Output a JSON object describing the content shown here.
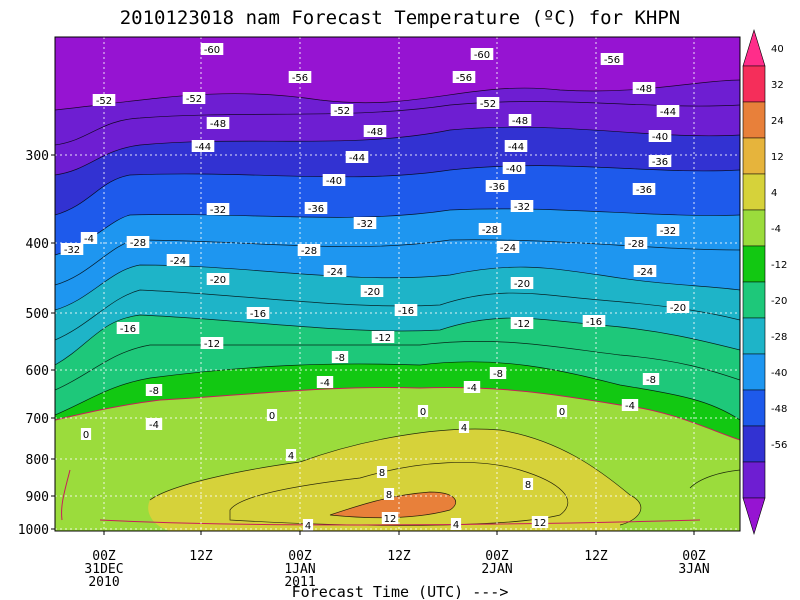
{
  "chart_data": {
    "type": "heatmap",
    "title": "2010123018 nam Forecast Temperature (ºC) for KHPN",
    "xlabel": "Forecast Time (UTC) --->",
    "ylabel": "",
    "x_ticks": [
      {
        "lines": [
          "00Z",
          "31DEC",
          "2010"
        ]
      },
      {
        "lines": [
          "12Z"
        ]
      },
      {
        "lines": [
          "00Z",
          "1JAN",
          "2011"
        ]
      },
      {
        "lines": [
          "12Z"
        ]
      },
      {
        "lines": [
          "00Z",
          "2JAN"
        ]
      },
      {
        "lines": [
          "12Z"
        ]
      },
      {
        "lines": [
          "00Z",
          "3JAN"
        ]
      }
    ],
    "y_ticks": [
      "300",
      "400",
      "500",
      "600",
      "700",
      "800",
      "900",
      "1000"
    ],
    "y_scale": "log",
    "colorbar": {
      "ticks": [
        "40",
        "32",
        "24",
        "12",
        "4",
        "-4",
        "-12",
        "-20",
        "-28",
        "-40",
        "-48",
        "-56"
      ],
      "colors": [
        "#ff2d8a",
        "#f52e5a",
        "#e8803a",
        "#e6b43c",
        "#d6d23a",
        "#9bdc3c",
        "#12c812",
        "#1ec87a",
        "#1eb4c8",
        "#1e96f0",
        "#1e5aeb",
        "#3232d2",
        "#6e1ed2",
        "#9614d2"
      ]
    },
    "grid": true,
    "contour_labels": [
      "-60",
      "-56",
      "-60",
      "-56",
      "-56",
      "-52",
      "-52",
      "-52",
      "-52",
      "-48",
      "-48",
      "-48",
      "-48",
      "-44",
      "-44",
      "-44",
      "-44",
      "-40",
      "-40",
      "-40",
      "-36",
      "-36",
      "-36",
      "-36",
      "-32",
      "-32",
      "-32",
      "-32",
      "-32",
      "-28",
      "-28",
      "-28",
      "-28",
      "-24",
      "-24",
      "-24",
      "-24",
      "-20",
      "-20",
      "-20",
      "-20",
      "-16",
      "-16",
      "-16",
      "-16",
      "-12",
      "-12",
      "-12",
      "-8",
      "-8",
      "-8",
      "-8",
      "-4",
      "-4",
      "-4",
      "-4",
      "-4",
      "0",
      "0",
      "0",
      "0",
      "4",
      "4",
      "4",
      "4",
      "8",
      "8",
      "8",
      "12",
      "12"
    ]
  }
}
